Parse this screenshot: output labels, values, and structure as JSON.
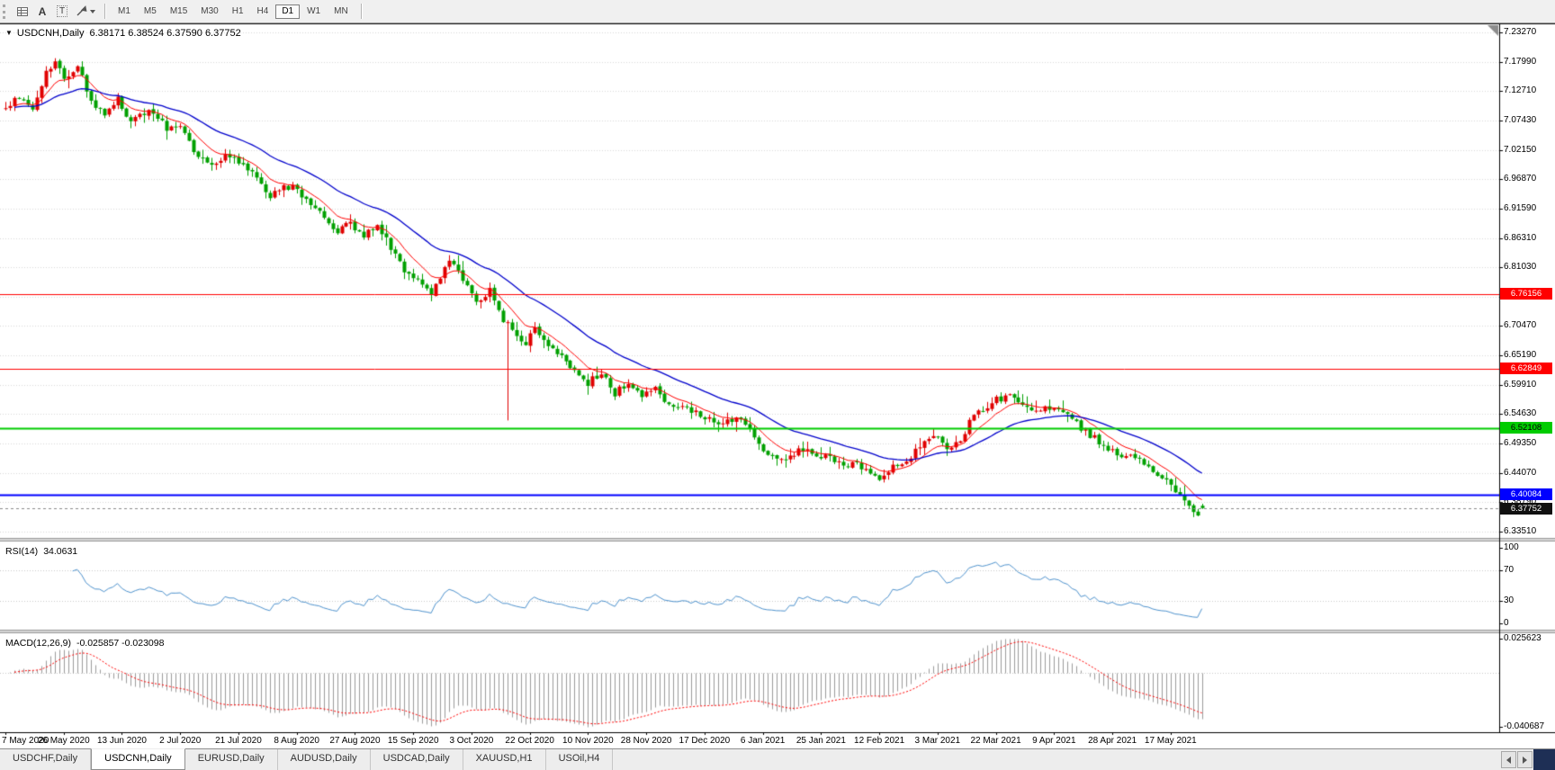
{
  "toolbar": {
    "text_tool_glyph": "A",
    "textbox_tool_glyph": "T",
    "timeframes": [
      "M1",
      "M5",
      "M15",
      "M30",
      "H1",
      "H4",
      "D1",
      "W1",
      "MN"
    ],
    "active_timeframe": "D1"
  },
  "chart": {
    "collapse_glyph": "▼",
    "symbol_label": "USDCNH,Daily",
    "ohlc_label": "6.38171 6.38524 6.37590 6.37752",
    "price_axis_labels": [
      "7.23270",
      "7.17990",
      "7.12710",
      "7.07430",
      "7.02150",
      "6.96870",
      "6.91590",
      "6.86310",
      "6.81030",
      "6.75750",
      "6.70470",
      "6.65190",
      "6.59910",
      "6.54630",
      "6.49350",
      "6.44070",
      "6.38790",
      "6.33510"
    ],
    "hlines": [
      {
        "price": "6.76156",
        "value": 6.76156,
        "color": "#FF0000",
        "text_color": "#FFFFFF",
        "line_width": 1
      },
      {
        "price": "6.62849",
        "value": 6.62849,
        "color": "#FF0000",
        "text_color": "#FFFFFF",
        "line_width": 1
      },
      {
        "price": "6.52108",
        "value": 6.52108,
        "color": "#00CC00",
        "text_color": "#000000",
        "line_width": 2
      },
      {
        "price": "6.40084",
        "value": 6.40084,
        "color": "#0000FF",
        "text_color": "#FFFFFF",
        "line_width": 2
      }
    ],
    "current_price": {
      "price": "6.37752",
      "value": 6.37752,
      "badge_color": "#101010",
      "text_color": "#FFFFFF"
    },
    "date_axis_labels": [
      "7 May 2020",
      "26 May 2020",
      "13 Jun 2020",
      "2 Jul 2020",
      "21 Jul 2020",
      "8 Aug 2020",
      "27 Aug 2020",
      "15 Sep 2020",
      "3 Oct 2020",
      "22 Oct 2020",
      "10 Nov 2020",
      "28 Nov 2020",
      "17 Dec 2020",
      "6 Jan 2021",
      "25 Jan 2021",
      "12 Feb 2021",
      "3 Mar 2021",
      "22 Mar 2021",
      "9 Apr 2021",
      "28 Apr 2021",
      "17 May 2021"
    ]
  },
  "rsi": {
    "label": "RSI(14)",
    "value": "34.0631",
    "axis_labels": [
      "100",
      "70",
      "30",
      "0"
    ],
    "levels": [
      70,
      30
    ],
    "line_color": "#4f93ce"
  },
  "macd": {
    "label": "MACD(12,26,9)",
    "values": "-0.025857 -0.023098",
    "axis_labels": [
      {
        "text": "0.025623",
        "value": 0.025623
      },
      {
        "text": "-0.040687",
        "value": -0.040687
      }
    ],
    "histogram_color": "#9c9c9c",
    "signal_color": "#FF0000"
  },
  "tabs": {
    "items": [
      "USDCHF,Daily",
      "USDCNH,Daily",
      "EURUSD,Daily",
      "AUDUSD,Daily",
      "USDCAD,Daily",
      "XAUUSD,H1",
      "USOil,H4"
    ],
    "active": "USDCNH,Daily"
  },
  "chart_data": {
    "type": "candlestick",
    "symbol": "USDCNH",
    "timeframe": "Daily",
    "ohlc_current": {
      "open": 6.38171,
      "high": 6.38524,
      "low": 6.3759,
      "close": 6.37752
    },
    "price_range": {
      "min": 6.3238,
      "max": 7.2488
    },
    "candle_count": 268,
    "x_axis": {
      "start": "7 May 2020",
      "end": "17 May 2021",
      "ticks_every_candles": 13
    },
    "close_path": [
      [
        0,
        7.095
      ],
      [
        3,
        7.12
      ],
      [
        6,
        7.1
      ],
      [
        9,
        7.158
      ],
      [
        11,
        7.186
      ],
      [
        13,
        7.15
      ],
      [
        16,
        7.168
      ],
      [
        19,
        7.112
      ],
      [
        22,
        7.086
      ],
      [
        25,
        7.112
      ],
      [
        28,
        7.072
      ],
      [
        32,
        7.09
      ],
      [
        36,
        7.062
      ],
      [
        39,
        7.068
      ],
      [
        42,
        7.022
      ],
      [
        45,
        6.998
      ],
      [
        49,
        7.008
      ],
      [
        53,
        6.995
      ],
      [
        56,
        6.972
      ],
      [
        59,
        6.94
      ],
      [
        62,
        6.958
      ],
      [
        65,
        6.948
      ],
      [
        68,
        6.926
      ],
      [
        71,
        6.896
      ],
      [
        74,
        6.876
      ],
      [
        77,
        6.89
      ],
      [
        80,
        6.868
      ],
      [
        83,
        6.882
      ],
      [
        86,
        6.846
      ],
      [
        89,
        6.806
      ],
      [
        92,
        6.788
      ],
      [
        95,
        6.758
      ],
      [
        97,
        6.796
      ],
      [
        99,
        6.828
      ],
      [
        102,
        6.788
      ],
      [
        105,
        6.742
      ],
      [
        108,
        6.768
      ],
      [
        111,
        6.718
      ],
      [
        113,
        6.7
      ],
      [
        116,
        6.672
      ],
      [
        118,
        6.702
      ],
      [
        121,
        6.672
      ],
      [
        124,
        6.654
      ],
      [
        127,
        6.624
      ],
      [
        130,
        6.602
      ],
      [
        133,
        6.624
      ],
      [
        136,
        6.582
      ],
      [
        139,
        6.606
      ],
      [
        142,
        6.578
      ],
      [
        145,
        6.59
      ],
      [
        148,
        6.566
      ],
      [
        151,
        6.556
      ],
      [
        154,
        6.548
      ],
      [
        157,
        6.538
      ],
      [
        160,
        6.528
      ],
      [
        163,
        6.542
      ],
      [
        166,
        6.524
      ],
      [
        169,
        6.478
      ],
      [
        172,
        6.462
      ],
      [
        175,
        6.472
      ],
      [
        178,
        6.482
      ],
      [
        181,
        6.474
      ],
      [
        184,
        6.466
      ],
      [
        187,
        6.458
      ],
      [
        190,
        6.454
      ],
      [
        193,
        6.444
      ],
      [
        195,
        6.428
      ],
      [
        198,
        6.454
      ],
      [
        201,
        6.462
      ],
      [
        204,
        6.49
      ],
      [
        207,
        6.508
      ],
      [
        210,
        6.482
      ],
      [
        213,
        6.502
      ],
      [
        216,
        6.544
      ],
      [
        219,
        6.562
      ],
      [
        221,
        6.572
      ],
      [
        224,
        6.576
      ],
      [
        227,
        6.564
      ],
      [
        230,
        6.552
      ],
      [
        234,
        6.556
      ],
      [
        237,
        6.542
      ],
      [
        240,
        6.52
      ],
      [
        243,
        6.502
      ],
      [
        247,
        6.482
      ],
      [
        250,
        6.472
      ],
      [
        253,
        6.46
      ],
      [
        256,
        6.444
      ],
      [
        259,
        6.432
      ],
      [
        261,
        6.41
      ],
      [
        263,
        6.392
      ],
      [
        265,
        6.368
      ],
      [
        266,
        6.36
      ],
      [
        267,
        6.3775
      ]
    ],
    "spike": {
      "index": 112,
      "low": 6.535
    },
    "up_color": "#e00000",
    "down_color": "#00A000",
    "ma_fast": {
      "period": 9,
      "color": "#FF0000"
    },
    "ma_slow": {
      "period": 28,
      "color": "#0000CC"
    },
    "rsi": {
      "period": 14,
      "range": [
        0,
        100
      ],
      "current": 34.0631
    },
    "macd": {
      "fast": 12,
      "slow": 26,
      "signal": 9,
      "range": [
        -0.040687,
        0.025623
      ],
      "current_macd": -0.025857,
      "current_signal": -0.023098
    },
    "support_resistance_levels": [
      6.76156,
      6.62849,
      6.52108,
      6.40084
    ]
  }
}
